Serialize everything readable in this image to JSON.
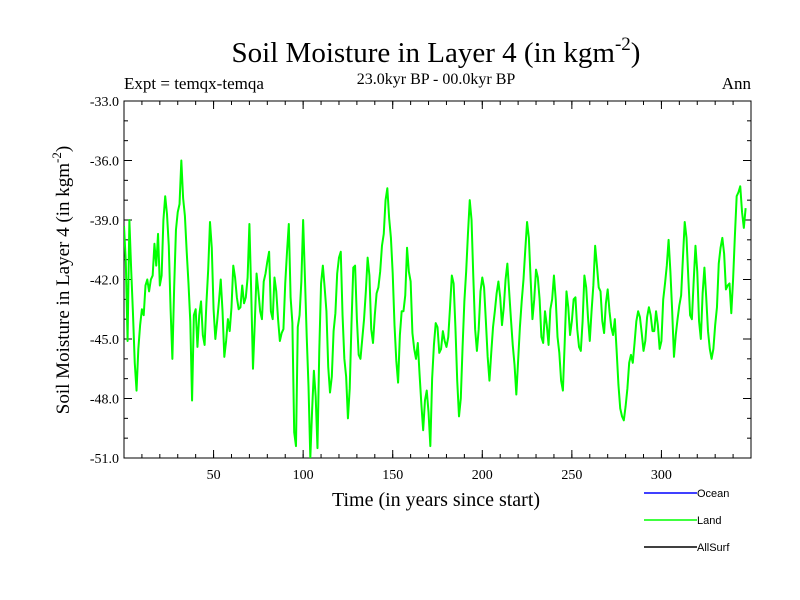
{
  "header": {
    "title": "Soil Moisture in Layer 4 (in kgm",
    "title_sup": "-2",
    "title_close": ")",
    "expt": "Expt = temqx-temqa",
    "period": "23.0kyr BP - 00.0kyr BP",
    "season": "Ann"
  },
  "chart_data": {
    "type": "line",
    "title": "Soil Moisture in Layer 4 (in kgm-2)",
    "xlabel": "Time (in years since start)",
    "ylabel": "Soil Moisture in Layer 4 (in kgm-2)",
    "ylabel_main": "Soil Moisture in Layer 4 (in kgm",
    "ylabel_sup": "-2",
    "ylabel_close": ")",
    "xlim": [
      0,
      350
    ],
    "ylim": [
      -51,
      -33
    ],
    "xticks": [
      50,
      100,
      150,
      200,
      250,
      300
    ],
    "xtick_labels": [
      "50",
      "100",
      "150",
      "200",
      "250",
      "300"
    ],
    "yticks": [
      -51,
      -48,
      -45,
      -42,
      -39,
      -36,
      -33
    ],
    "ytick_labels": [
      "-51.0",
      "-48.0",
      "-45.0",
      "-42.0",
      "-39.0",
      "-36.0",
      "-33.0"
    ],
    "x_start": 0,
    "x_step": 1,
    "series": [
      {
        "name": "Land",
        "color": "#00ff00",
        "values": [
          -39.3,
          -41.1,
          -45.1,
          -39.0,
          -41.5,
          -43.7,
          -46.2,
          -47.6,
          -45.5,
          -44.3,
          -43.5,
          -43.8,
          -42.3,
          -42.0,
          -42.6,
          -42.0,
          -41.8,
          -40.2,
          -41.3,
          -39.7,
          -42.3,
          -41.8,
          -39.0,
          -37.8,
          -38.7,
          -40.3,
          -43.5,
          -46.0,
          -42.4,
          -39.5,
          -38.6,
          -38.2,
          -36.0,
          -37.9,
          -38.8,
          -40.6,
          -42.2,
          -44.1,
          -48.1,
          -43.8,
          -43.5,
          -45.4,
          -43.8,
          -43.1,
          -44.8,
          -45.3,
          -43.2,
          -41.5,
          -39.1,
          -40.4,
          -43.5,
          -45.0,
          -44.1,
          -43.1,
          -42.0,
          -43.6,
          -45.9,
          -45.1,
          -44.0,
          -44.6,
          -43.4,
          -41.3,
          -41.9,
          -42.9,
          -43.5,
          -43.4,
          -42.3,
          -43.2,
          -42.9,
          -41.9,
          -39.2,
          -42.6,
          -46.5,
          -44.2,
          -41.7,
          -42.6,
          -43.6,
          -44.0,
          -42.1,
          -41.7,
          -41.1,
          -40.6,
          -43.6,
          -44.0,
          -41.9,
          -42.6,
          -44.0,
          -45.1,
          -44.7,
          -44.5,
          -42.2,
          -40.6,
          -39.2,
          -42.9,
          -44.2,
          -49.7,
          -50.4,
          -44.4,
          -43.8,
          -42.1,
          -39.0,
          -41.9,
          -44.9,
          -47.4,
          -51.0,
          -48.6,
          -46.6,
          -47.9,
          -50.5,
          -45.6,
          -42.2,
          -41.3,
          -42.4,
          -43.6,
          -46.4,
          -47.7,
          -46.9,
          -44.6,
          -43.7,
          -41.7,
          -40.9,
          -40.6,
          -43.8,
          -46.0,
          -46.9,
          -49.0,
          -47.5,
          -44.2,
          -41.4,
          -41.3,
          -44.0,
          -45.8,
          -46.0,
          -45.0,
          -44.0,
          -42.6,
          -40.9,
          -41.8,
          -44.5,
          -45.2,
          -43.8,
          -42.7,
          -42.4,
          -41.6,
          -40.3,
          -39.7,
          -38.0,
          -37.4,
          -38.9,
          -39.9,
          -41.7,
          -44.3,
          -46.1,
          -47.2,
          -44.8,
          -43.6,
          -43.6,
          -42.8,
          -40.4,
          -41.6,
          -42.1,
          -44.7,
          -45.5,
          -46.0,
          -45.2,
          -46.8,
          -48.3,
          -49.6,
          -48.1,
          -47.6,
          -48.7,
          -50.4,
          -47.0,
          -45.3,
          -44.2,
          -44.4,
          -45.7,
          -45.5,
          -44.6,
          -45.1,
          -45.4,
          -44.9,
          -43.4,
          -41.8,
          -42.2,
          -44.4,
          -47.1,
          -48.9,
          -48.0,
          -45.4,
          -43.1,
          -41.6,
          -39.7,
          -38.0,
          -39.0,
          -41.9,
          -44.5,
          -45.6,
          -44.5,
          -42.6,
          -41.9,
          -42.4,
          -44.1,
          -45.9,
          -47.1,
          -45.7,
          -44.4,
          -43.6,
          -42.7,
          -42.1,
          -42.9,
          -44.3,
          -43.4,
          -42.0,
          -41.2,
          -42.6,
          -44.0,
          -45.3,
          -46.3,
          -47.8,
          -46.1,
          -44.4,
          -43.1,
          -42.0,
          -40.5,
          -39.1,
          -39.9,
          -42.0,
          -44.0,
          -43.0,
          -41.5,
          -41.9,
          -43.0,
          -44.9,
          -45.2,
          -43.6,
          -44.3,
          -45.3,
          -43.5,
          -43.0,
          -41.8,
          -43.0,
          -44.9,
          -45.7,
          -47.1,
          -47.6,
          -45.2,
          -42.6,
          -43.4,
          -44.8,
          -44.1,
          -43.0,
          -42.9,
          -44.5,
          -45.4,
          -45.6,
          -44.1,
          -41.8,
          -42.4,
          -43.9,
          -45.1,
          -43.6,
          -42.3,
          -40.3,
          -41.3,
          -42.4,
          -42.6,
          -44.1,
          -44.7,
          -43.2,
          -42.5,
          -43.6,
          -44.4,
          -44.8,
          -44.0,
          -45.6,
          -47.3,
          -48.5,
          -48.9,
          -49.1,
          -48.4,
          -47.5,
          -46.2,
          -45.8,
          -46.2,
          -45.2,
          -44.1,
          -43.6,
          -43.9,
          -44.7,
          -45.6,
          -45.1,
          -43.9,
          -43.4,
          -43.8,
          -44.6,
          -44.6,
          -43.6,
          -44.3,
          -45.5,
          -45.1,
          -43.0,
          -42.2,
          -41.3,
          -40.0,
          -41.6,
          -43.6,
          -45.9,
          -44.8,
          -44.0,
          -43.3,
          -42.8,
          -40.9,
          -39.1,
          -39.9,
          -41.9,
          -43.8,
          -44.0,
          -42.1,
          -40.3,
          -41.6,
          -44.1,
          -45.0,
          -42.7,
          -41.4,
          -42.9,
          -44.6,
          -45.5,
          -46.0,
          -45.5,
          -44.3,
          -43.4,
          -41.2,
          -40.4,
          -39.9,
          -40.7,
          -42.5,
          -42.3,
          -42.2,
          -43.7,
          -42.0,
          -39.8,
          -37.8,
          -37.6,
          -37.3,
          -38.6,
          -39.4,
          -38.4
        ]
      }
    ],
    "legend": {
      "position": "bottom-right",
      "entries": [
        {
          "label": "Ocean",
          "color": "#0000ff"
        },
        {
          "label": "Land",
          "color": "#00ff00"
        },
        {
          "label": "AllSurf",
          "color": "#000000"
        }
      ]
    }
  }
}
